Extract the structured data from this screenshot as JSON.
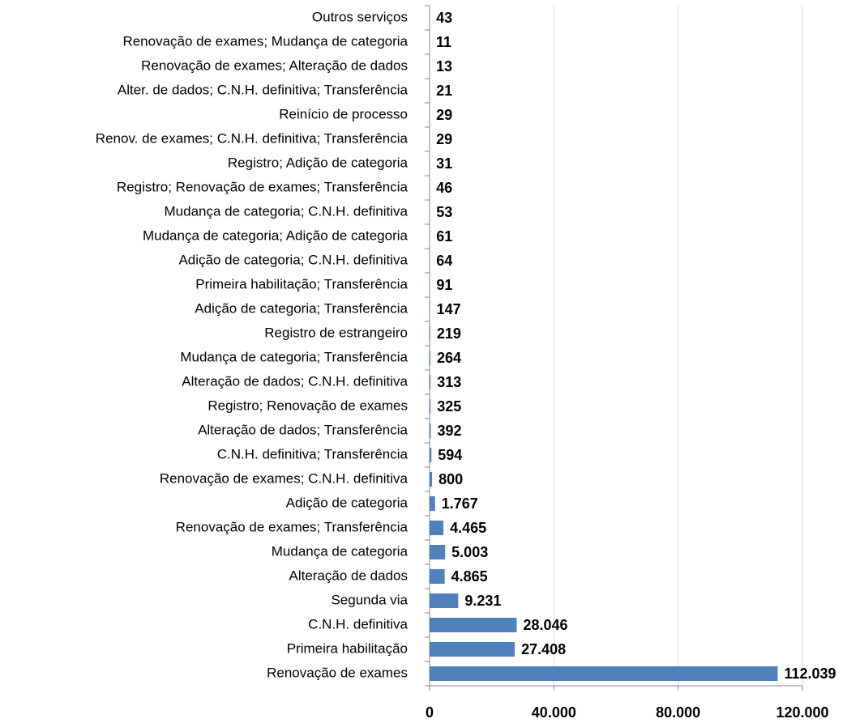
{
  "chart_data": {
    "type": "barh",
    "categories": [
      "Renovação de exames",
      "Primeira habilitação",
      "C.N.H. definitiva",
      "Segunda via",
      "Alteração de dados",
      "Mudança de categoria",
      "Renovação de exames; Transferência",
      "Adição de categoria",
      "Renovação de exames; C.N.H. definitiva",
      "C.N.H. definitiva; Transferência",
      "Alteração de dados; Transferência",
      "Registro; Renovação de exames",
      "Alteração de dados; C.N.H. definitiva",
      "Mudança de categoria; Transferência",
      "Registro de estrangeiro",
      "Adição de categoria; Transferência",
      "Primeira habilitação; Transferência",
      "Adição de categoria; C.N.H. definitiva",
      "Mudança de categoria; Adição de categoria",
      "Mudança de categoria; C.N.H. definitiva",
      "Registro; Renovação de exames; Transferência",
      "Registro; Adição de categoria",
      "Renov. de exames; C.N.H. definitiva; Transferência",
      "Reinício de processo",
      "Alter. de dados; C.N.H. definitiva; Transferência",
      "Renovação de exames; Alteração de dados",
      "Renovação de exames; Mudança de categoria",
      "Outros serviços"
    ],
    "values": [
      112039,
      27408,
      28046,
      9231,
      4865,
      5003,
      4465,
      1767,
      800,
      594,
      392,
      325,
      313,
      264,
      219,
      147,
      91,
      64,
      61,
      53,
      46,
      31,
      29,
      29,
      21,
      13,
      11,
      43
    ],
    "value_labels": [
      "112.039",
      "27.408",
      "28.046",
      "9.231",
      "4.865",
      "5.003",
      "4.465",
      "1.767",
      "800",
      "594",
      "392",
      "325",
      "313",
      "264",
      "219",
      "147",
      "91",
      "64",
      "61",
      "53",
      "46",
      "31",
      "29",
      "29",
      "21",
      "13",
      "11",
      "43"
    ],
    "color": "#4f81bd",
    "xlim": [
      0,
      120000
    ],
    "xticks": [
      0,
      {
        "value": 40000,
        "label": "40.000"
      },
      {
        "value": 80000,
        "label": "80.000"
      },
      {
        "value": 120000,
        "label": "120.000"
      }
    ],
    "grid": true
  }
}
